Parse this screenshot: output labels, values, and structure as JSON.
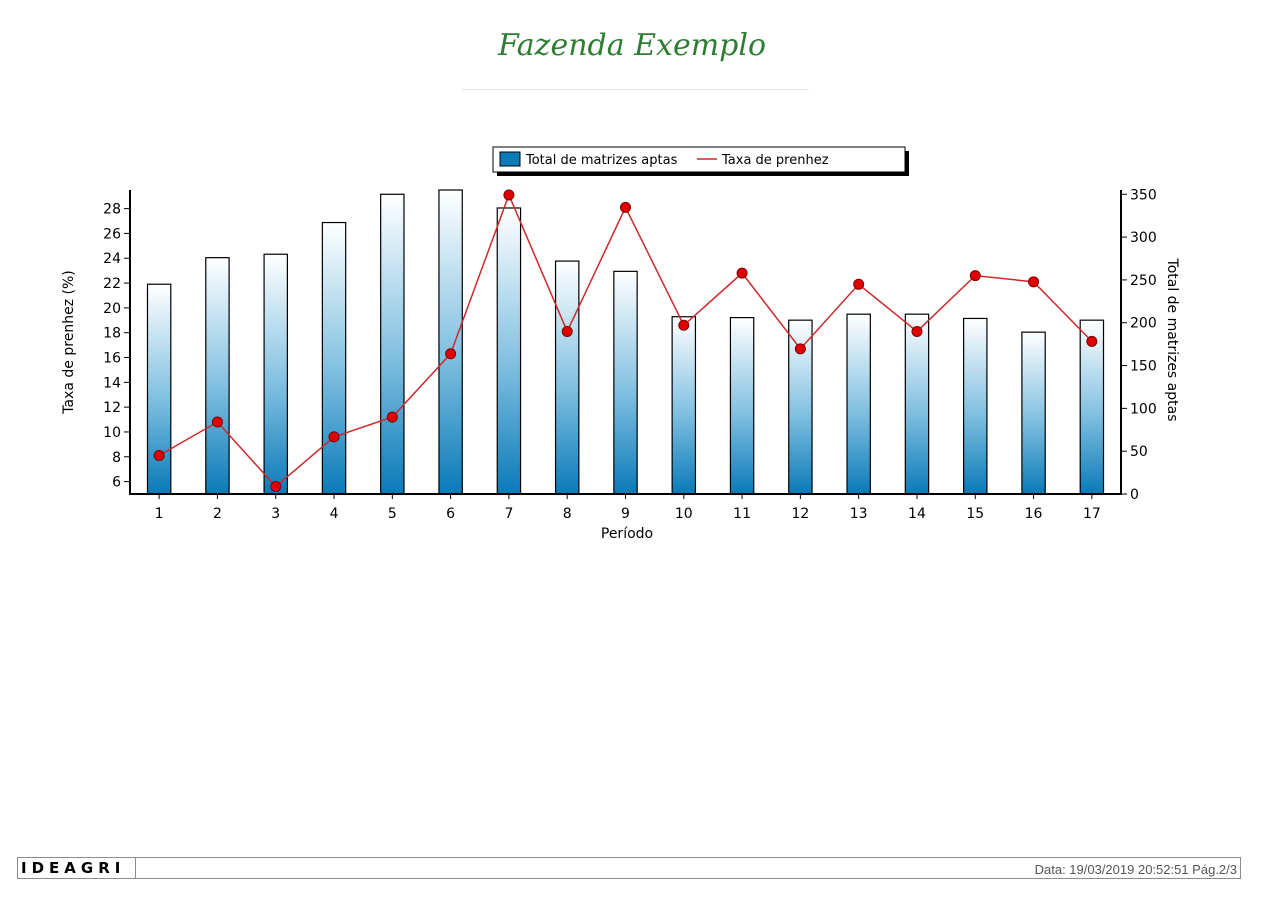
{
  "report": {
    "title": "Fazenda Exemplo",
    "footer_logo": "IDEAGRI",
    "footer_info": "Data: 19/03/2019 20:52:51 Pág.2/3"
  },
  "chart_data": {
    "type": "bar",
    "xlabel": "Período",
    "ylabel_left": "Taxa de prenhez (%)",
    "ylabel_right": "Total de matrizes aptas",
    "categories": [
      "1",
      "2",
      "3",
      "4",
      "5",
      "6",
      "7",
      "8",
      "9",
      "10",
      "11",
      "12",
      "13",
      "14",
      "15",
      "16",
      "17"
    ],
    "legend_position": "top-center",
    "grid": false,
    "left_axis": {
      "range": [
        5,
        29.5
      ],
      "ticks": [
        6,
        8,
        10,
        12,
        14,
        16,
        18,
        20,
        22,
        24,
        26,
        28
      ]
    },
    "right_axis": {
      "range": [
        0,
        355
      ],
      "ticks": [
        0,
        50,
        100,
        150,
        200,
        250,
        300,
        350
      ]
    },
    "series": [
      {
        "name": "Total de matrizes aptas",
        "type": "bar",
        "axis": "right",
        "color": "#0a7ab8",
        "values": [
          245,
          276,
          280,
          317,
          350,
          355,
          334,
          272,
          260,
          207,
          206,
          203,
          210,
          210,
          205,
          189,
          203
        ]
      },
      {
        "name": "Taxa de prenhez",
        "type": "line",
        "axis": "left",
        "color": "#cc2a2a",
        "marker_color": "#e00000",
        "values": [
          8.1,
          10.8,
          5.6,
          9.6,
          11.2,
          16.3,
          29.1,
          18.1,
          28.1,
          18.6,
          22.8,
          16.7,
          21.9,
          18.1,
          22.6,
          22.1,
          17.3
        ]
      }
    ]
  }
}
